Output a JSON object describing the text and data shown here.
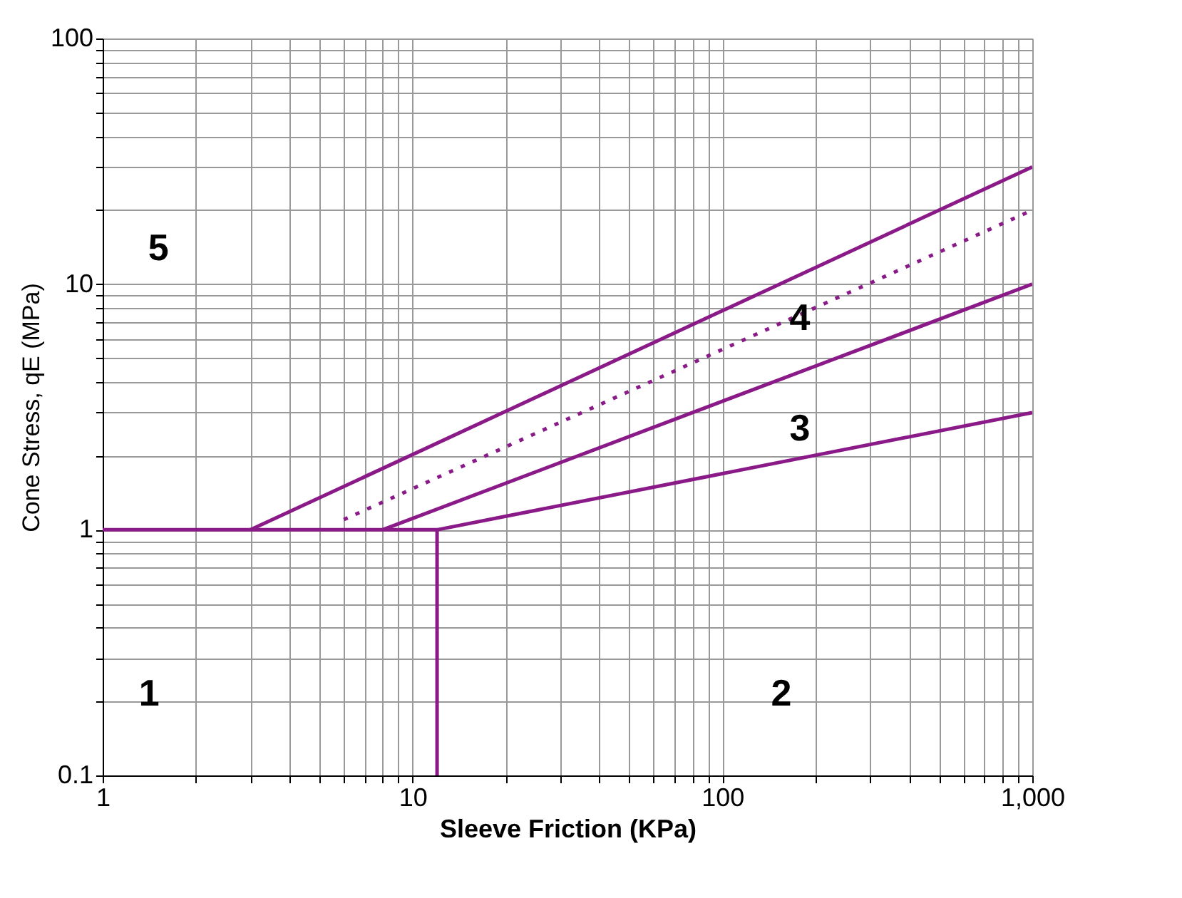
{
  "chart_data": {
    "type": "line",
    "xlabel": "Sleeve Friction  (KPa)",
    "ylabel": "Cone Stress, qE (MPa)",
    "log": "xy",
    "grid": true,
    "xlim": [
      1,
      1000
    ],
    "ylim": [
      0.1,
      100
    ],
    "xticks": [
      1,
      {
        "value": 2,
        "label": null
      },
      {
        "value": 3,
        "label": null
      },
      {
        "value": 4,
        "label": null
      },
      {
        "value": 5,
        "label": null
      },
      {
        "value": 6,
        "label": null
      },
      {
        "value": 7,
        "label": null
      },
      {
        "value": 8,
        "label": null
      },
      {
        "value": 9,
        "label": null
      },
      10,
      {
        "value": 20,
        "label": null
      },
      {
        "value": 30,
        "label": null
      },
      {
        "value": 40,
        "label": null
      },
      {
        "value": 50,
        "label": null
      },
      {
        "value": 60,
        "label": null
      },
      {
        "value": 70,
        "label": null
      },
      {
        "value": 80,
        "label": null
      },
      {
        "value": 90,
        "label": null
      },
      100,
      {
        "value": 200,
        "label": null
      },
      {
        "value": 300,
        "label": null
      },
      {
        "value": 400,
        "label": null
      },
      {
        "value": 500,
        "label": null
      },
      {
        "value": 600,
        "label": null
      },
      {
        "value": 700,
        "label": null
      },
      {
        "value": 800,
        "label": null
      },
      {
        "value": 900,
        "label": null
      },
      {
        "value": 1000,
        "label": "1,000"
      }
    ],
    "yticks": [
      0.1,
      {
        "value": 0.2,
        "label": null
      },
      {
        "value": 0.3,
        "label": null
      },
      {
        "value": 0.4,
        "label": null
      },
      {
        "value": 0.5,
        "label": null
      },
      {
        "value": 0.6,
        "label": null
      },
      {
        "value": 0.7,
        "label": null
      },
      {
        "value": 0.8,
        "label": null
      },
      {
        "value": 0.9,
        "label": null
      },
      1,
      {
        "value": 2,
        "label": null
      },
      {
        "value": 3,
        "label": null
      },
      {
        "value": 4,
        "label": null
      },
      {
        "value": 5,
        "label": null
      },
      {
        "value": 6,
        "label": null
      },
      {
        "value": 7,
        "label": null
      },
      {
        "value": 8,
        "label": null
      },
      {
        "value": 9,
        "label": null
      },
      10,
      {
        "value": 20,
        "label": null
      },
      {
        "value": 30,
        "label": null
      },
      {
        "value": 40,
        "label": null
      },
      {
        "value": 50,
        "label": null
      },
      {
        "value": 60,
        "label": null
      },
      {
        "value": 70,
        "label": null
      },
      {
        "value": 80,
        "label": null
      },
      {
        "value": 90,
        "label": null
      },
      100
    ],
    "series": [
      {
        "color": "#8b1a89",
        "line_style": "solid",
        "x": [
          1,
          12,
          12
        ],
        "values": [
          1,
          1,
          0.1
        ]
      },
      {
        "color": "#8b1a89",
        "line_style": "solid",
        "x": [
          3,
          1000
        ],
        "values": [
          1,
          30
        ]
      },
      {
        "color": "#8b1a89",
        "line_style": "dotted",
        "x": [
          6,
          1000
        ],
        "values": [
          1.1,
          20
        ]
      },
      {
        "color": "#8b1a89",
        "line_style": "solid",
        "x": [
          8,
          1000
        ],
        "values": [
          1,
          10
        ]
      },
      {
        "color": "#8b1a89",
        "line_style": "solid",
        "x": [
          12,
          1000
        ],
        "values": [
          1,
          3
        ]
      }
    ],
    "annotations": [
      "5",
      "4",
      "3",
      "1",
      "2"
    ]
  }
}
